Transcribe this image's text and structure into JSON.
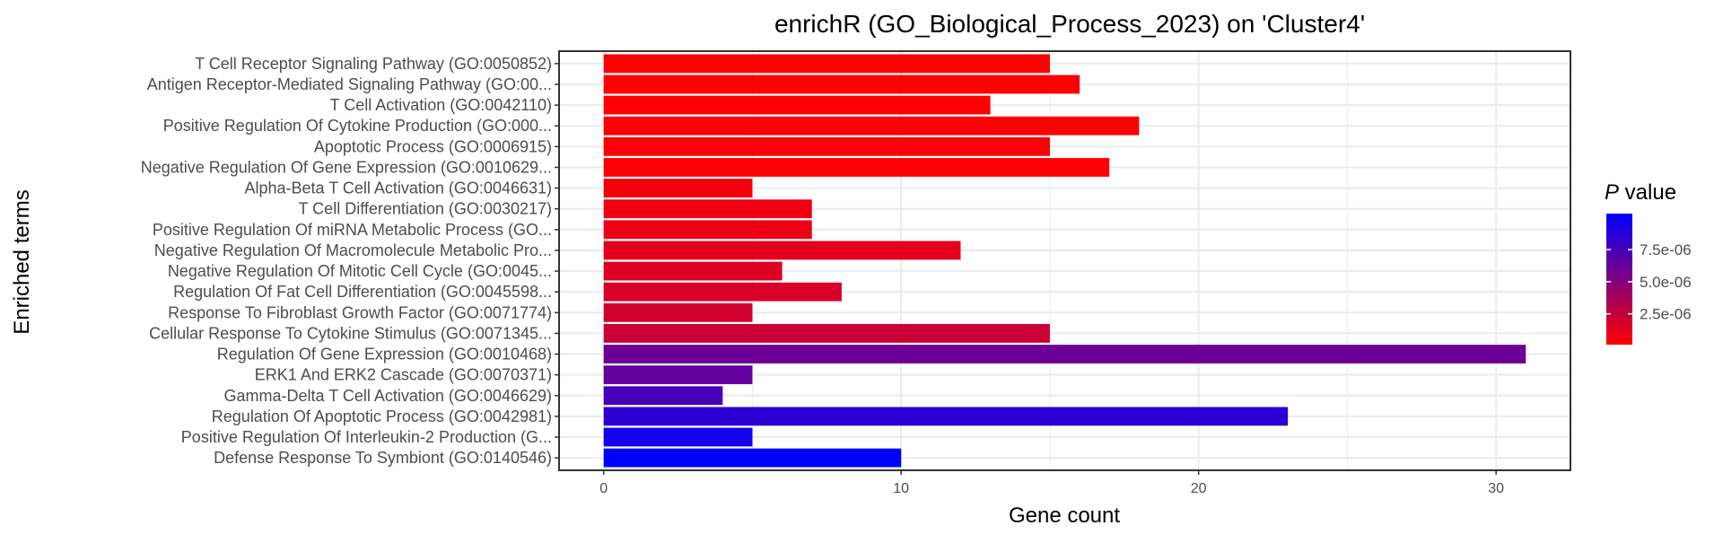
{
  "chart_data": {
    "type": "bar",
    "orientation": "horizontal",
    "title": "enrichR (GO_Biological_Process_2023) on 'Cluster4'",
    "xlabel": "Gene count",
    "ylabel": "Enriched terms",
    "xlim": [
      -1.5,
      32.5
    ],
    "xticks": [
      0,
      10,
      20,
      30
    ],
    "grid": true,
    "categories": [
      "T Cell Receptor Signaling Pathway (GO:0050852)",
      "Antigen Receptor-Mediated Signaling Pathway (GO:00...",
      "T Cell Activation (GO:0042110)",
      "Positive Regulation Of Cytokine Production (GO:000...",
      "Apoptotic Process (GO:0006915)",
      "Negative Regulation Of Gene Expression (GO:0010629...",
      "Alpha-Beta T Cell Activation (GO:0046631)",
      "T Cell Differentiation (GO:0030217)",
      "Positive Regulation Of miRNA Metabolic Process (GO...",
      "Negative Regulation Of Macromolecule Metabolic Pro...",
      "Negative Regulation Of Mitotic Cell Cycle (GO:0045...",
      "Regulation Of Fat Cell Differentiation (GO:0045598...",
      "Response To Fibroblast Growth Factor (GO:0071774)",
      "Cellular Response To Cytokine Stimulus (GO:0071345...",
      "Regulation Of Gene Expression (GO:0010468)",
      "ERK1 And ERK2 Cascade (GO:0070371)",
      "Gamma-Delta T Cell Activation (GO:0046629)",
      "Regulation Of Apoptotic Process (GO:0042981)",
      "Positive Regulation Of Interleukin-2 Production (G...",
      "Defense Response To Symbiont (GO:0140546)"
    ],
    "values": [
      15,
      16,
      13,
      18,
      15,
      17,
      5,
      7,
      7,
      12,
      6,
      8,
      5,
      15,
      31,
      5,
      4,
      23,
      5,
      10
    ],
    "p_values": [
      1e-07,
      1e-07,
      2e-07,
      2e-07,
      2.5e-07,
      3e-07,
      6e-07,
      8e-07,
      9e-07,
      1.2e-06,
      1.5e-06,
      1.7e-06,
      1.9e-06,
      2.2e-06,
      6e-06,
      6.3e-06,
      7.5e-06,
      8.6e-06,
      9.5e-06,
      1.03e-05
    ],
    "color_scale": {
      "title_italic": "P",
      "title_rest": " value",
      "low_color": "#ff0000",
      "high_color": "#0000ff",
      "min": 1e-07,
      "max": 1.03e-05,
      "ticks": [
        2.5e-06,
        5e-06,
        7.5e-06
      ],
      "tick_labels": [
        "2.5e-06",
        "5.0e-06",
        "7.5e-06"
      ],
      "placement": "right"
    }
  }
}
